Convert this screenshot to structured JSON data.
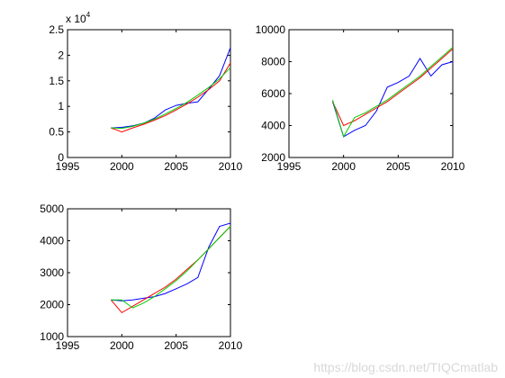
{
  "watermark": "https://blog.csdn.net/TIQCmatlab",
  "chart_data": [
    {
      "type": "line",
      "title": "",
      "xlabel": "",
      "ylabel": "",
      "xlim": [
        1995,
        2010
      ],
      "ylim": [
        0,
        25000
      ],
      "xticks": [
        1995,
        2000,
        2005,
        2010
      ],
      "yticks": [
        0,
        5000,
        10000,
        15000,
        20000,
        25000
      ],
      "ytick_labels": [
        "0",
        "0.5",
        "1",
        "1.5",
        "2",
        "2.5"
      ],
      "y_exponent_label": "x 10",
      "y_exponent_power": "4",
      "grid": false,
      "series": [
        {
          "color": "#0000ff",
          "x": [
            1999,
            2000,
            2001,
            2002,
            2003,
            2004,
            2005,
            2006,
            2007,
            2008,
            2009,
            2010
          ],
          "y": [
            5800,
            5900,
            6200,
            6700,
            7700,
            9300,
            10200,
            10600,
            10900,
            13400,
            16000,
            21500
          ]
        },
        {
          "color": "#ff0000",
          "x": [
            1999,
            2000,
            2001,
            2002,
            2003,
            2004,
            2005,
            2006,
            2007,
            2008,
            2009,
            2010
          ],
          "y": [
            5800,
            5000,
            5800,
            6500,
            7300,
            8200,
            9300,
            10500,
            11800,
            13300,
            15000,
            18500
          ]
        },
        {
          "color": "#00cc00",
          "x": [
            1999,
            2000,
            2001,
            2002,
            2003,
            2004,
            2005,
            2006,
            2007,
            2008,
            2009,
            2010
          ],
          "y": [
            5800,
            5700,
            6100,
            6700,
            7500,
            8500,
            9600,
            10800,
            12200,
            13700,
            15400,
            17600
          ]
        }
      ]
    },
    {
      "type": "line",
      "title": "",
      "xlabel": "",
      "ylabel": "",
      "xlim": [
        1995,
        2010
      ],
      "ylim": [
        2000,
        10000
      ],
      "xticks": [
        1995,
        2000,
        2005,
        2010
      ],
      "yticks": [
        2000,
        4000,
        6000,
        8000,
        10000
      ],
      "ytick_labels": [
        "2000",
        "4000",
        "6000",
        "8000",
        "10000"
      ],
      "grid": false,
      "series": [
        {
          "color": "#0000ff",
          "x": [
            1999,
            2000,
            2001,
            2002,
            2003,
            2004,
            2005,
            2006,
            2007,
            2008,
            2009,
            2010
          ],
          "y": [
            5500,
            3300,
            3700,
            4000,
            4900,
            6400,
            6700,
            7100,
            8200,
            7100,
            7800,
            8000
          ]
        },
        {
          "color": "#ff0000",
          "x": [
            1999,
            2000,
            2001,
            2002,
            2003,
            2004,
            2005,
            2006,
            2007,
            2008,
            2009,
            2010
          ],
          "y": [
            5500,
            4000,
            4300,
            4700,
            5100,
            5500,
            6000,
            6500,
            7000,
            7600,
            8200,
            8800
          ]
        },
        {
          "color": "#00cc00",
          "x": [
            1999,
            2000,
            2001,
            2002,
            2003,
            2004,
            2005,
            2006,
            2007,
            2008,
            2009,
            2010
          ],
          "y": [
            5600,
            3300,
            4500,
            4800,
            5200,
            5600,
            6100,
            6600,
            7100,
            7700,
            8300,
            8900
          ]
        }
      ]
    },
    {
      "type": "line",
      "title": "",
      "xlabel": "",
      "ylabel": "",
      "xlim": [
        1995,
        2010
      ],
      "ylim": [
        1000,
        5000
      ],
      "xticks": [
        1995,
        2000,
        2005,
        2010
      ],
      "yticks": [
        1000,
        2000,
        3000,
        4000,
        5000
      ],
      "ytick_labels": [
        "1000",
        "2000",
        "3000",
        "4000",
        "5000"
      ],
      "grid": false,
      "series": [
        {
          "color": "#0000ff",
          "x": [
            1999,
            2000,
            2001,
            2002,
            2003,
            2004,
            2005,
            2006,
            2007,
            2008,
            2009,
            2010
          ],
          "y": [
            2150,
            2120,
            2150,
            2200,
            2250,
            2350,
            2500,
            2650,
            2850,
            3800,
            4450,
            4550
          ]
        },
        {
          "color": "#ff0000",
          "x": [
            1999,
            2000,
            2001,
            2002,
            2003,
            2004,
            2005,
            2006,
            2007,
            2008,
            2009,
            2010
          ],
          "y": [
            2150,
            1750,
            1950,
            2150,
            2350,
            2550,
            2800,
            3100,
            3400,
            3750,
            4100,
            4450
          ]
        },
        {
          "color": "#00cc00",
          "x": [
            1999,
            2000,
            2001,
            2002,
            2003,
            2004,
            2005,
            2006,
            2007,
            2008,
            2009,
            2010
          ],
          "y": [
            2150,
            2150,
            1900,
            2050,
            2250,
            2500,
            2750,
            3050,
            3400,
            3750,
            4100,
            4450
          ]
        }
      ]
    }
  ]
}
